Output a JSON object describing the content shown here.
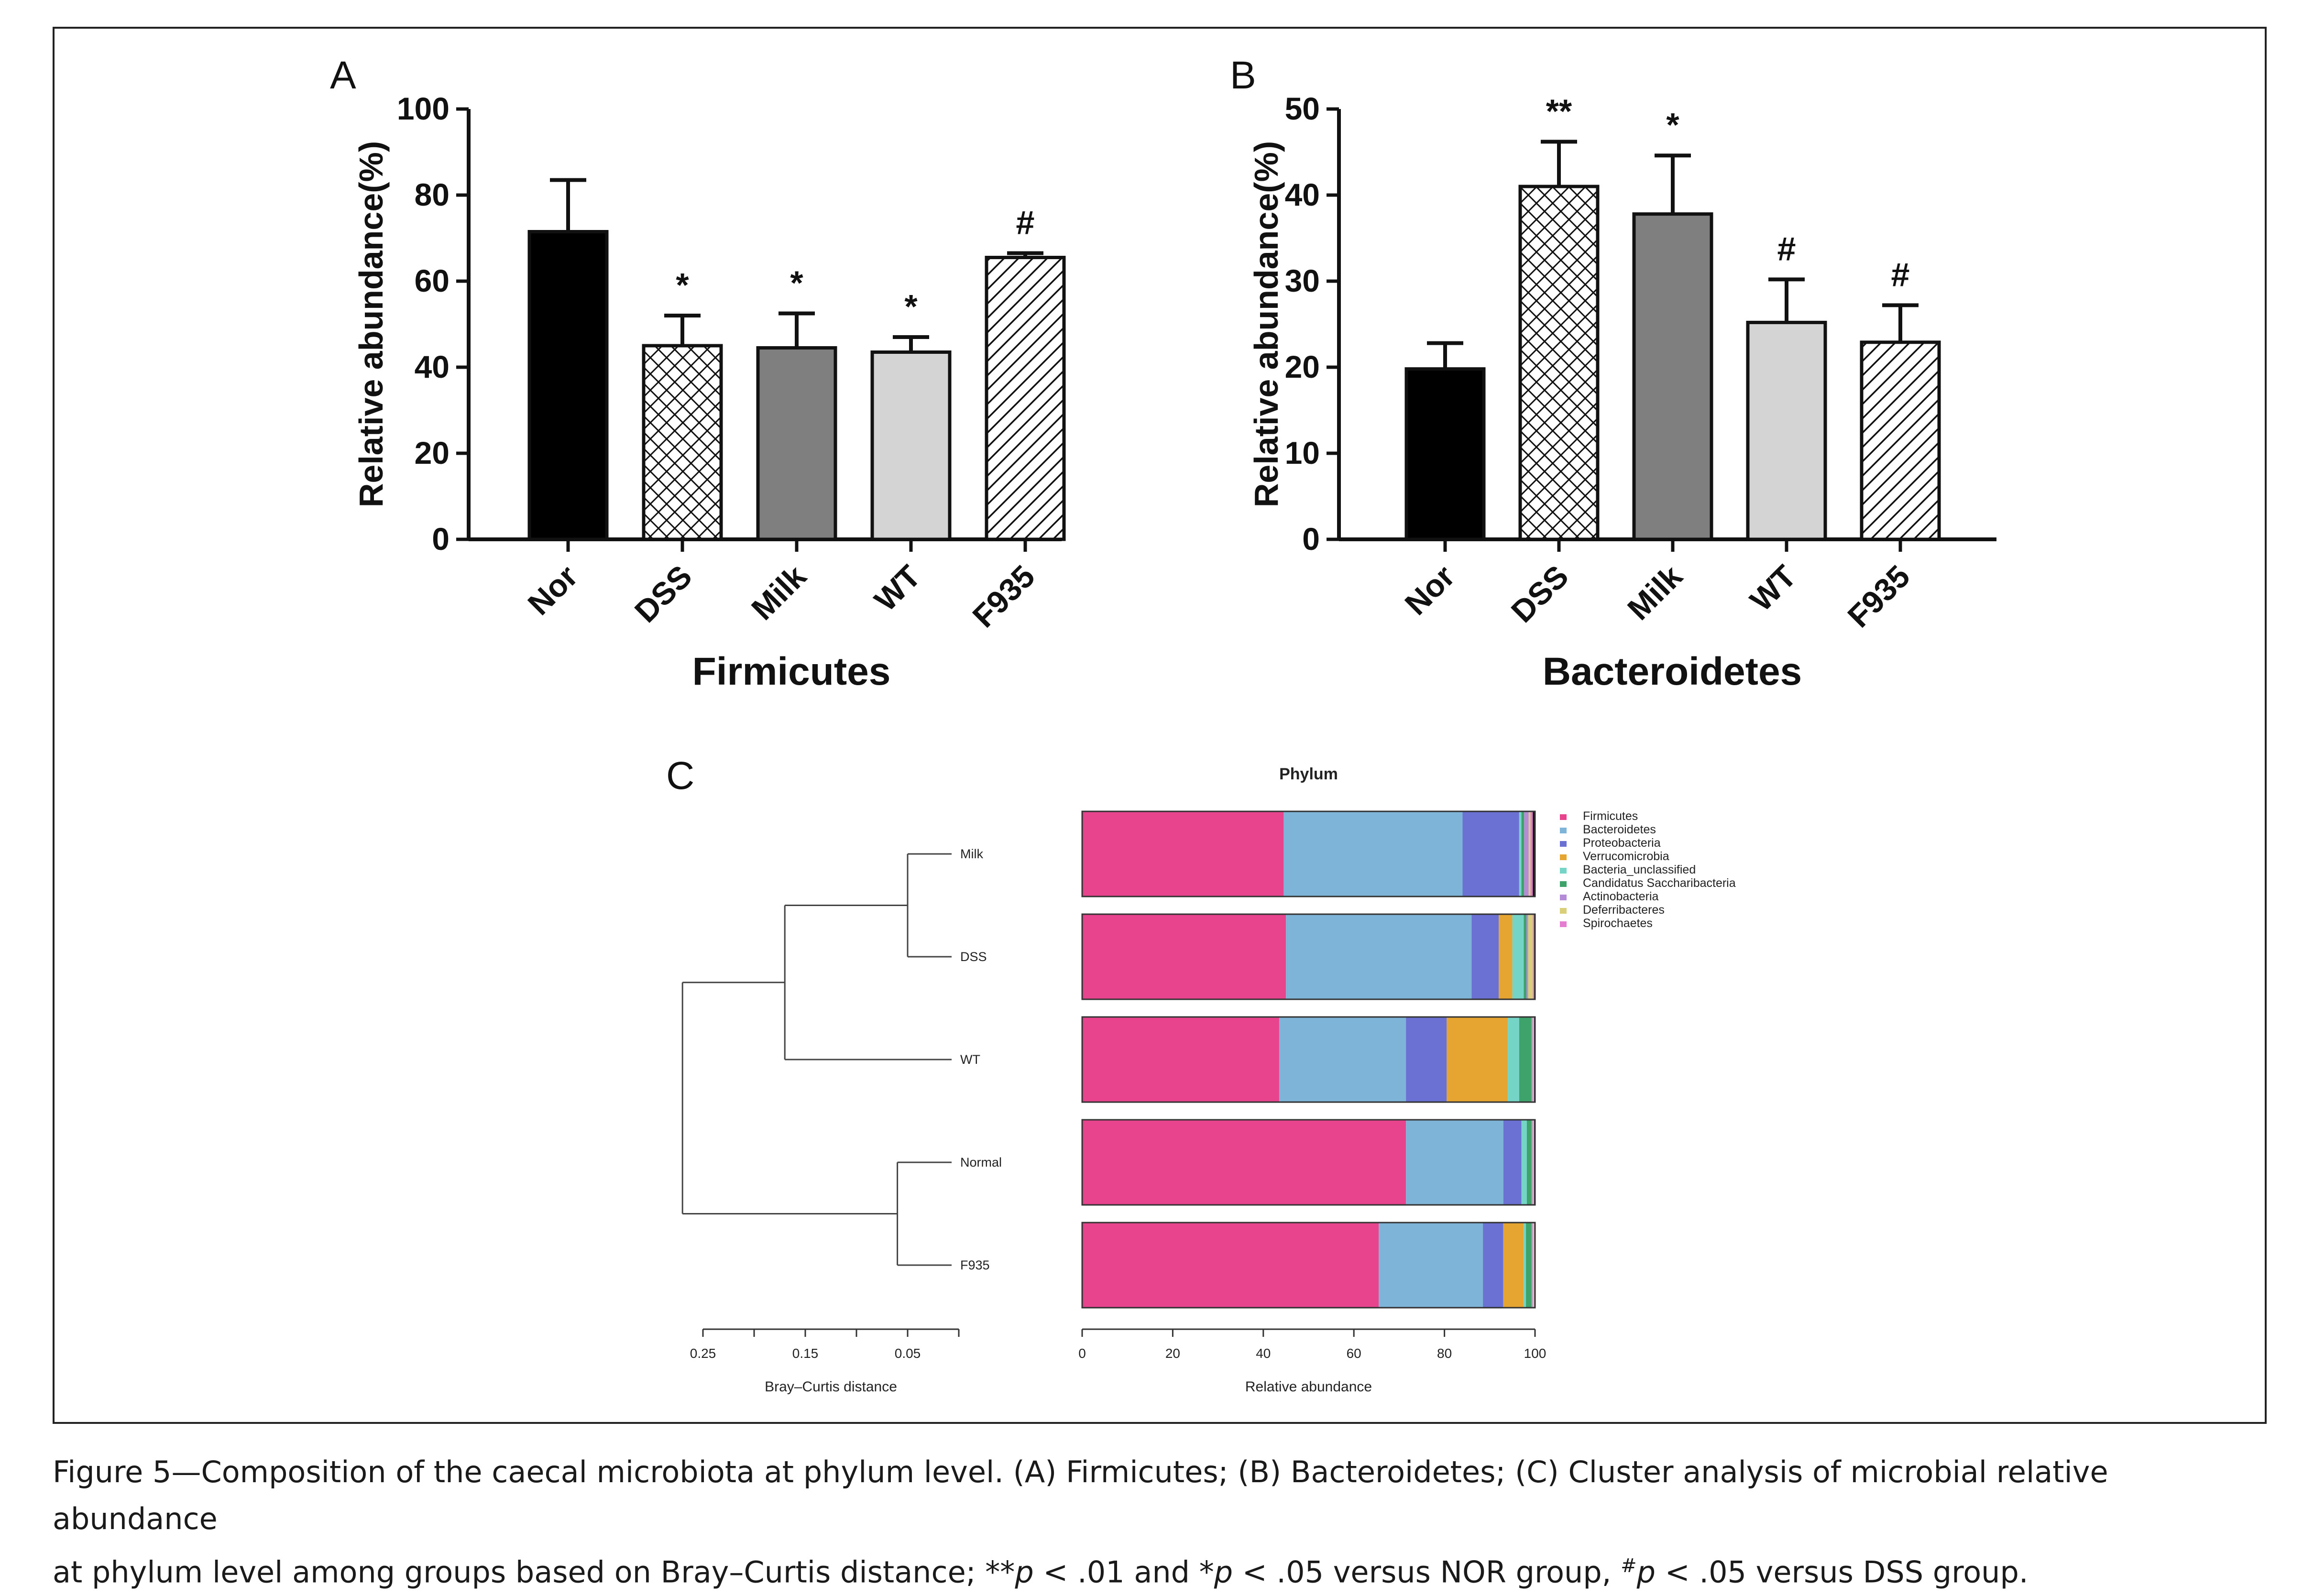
{
  "caption": {
    "t1": "Figure 5—Composition of the caecal microbiota at phylum level. (A) Firmicutes; (B) Bacteroidetes; (C) Cluster analysis of microbial relative abundance",
    "t2": "at phylum level among groups based on Bray–Curtis distance; **",
    "p1": "p",
    "t3": " < .01 and *",
    "p2": "p",
    "t4": " < .05 versus NOR group, ",
    "hash": "#",
    "p3": "p",
    "t5": " < .05 versus DSS group."
  },
  "chart_data": [
    {
      "panel": "A",
      "type": "bar",
      "xlabel": "Firmicutes",
      "ylabel": "Relative abundance(%)",
      "ylim": [
        0,
        100
      ],
      "yticks": [
        0,
        20,
        40,
        60,
        80,
        100
      ],
      "categories": [
        "Nor",
        "DSS",
        "Milk",
        "WT",
        "F935"
      ],
      "values": [
        71.5,
        45,
        44.5,
        43.5,
        65.5
      ],
      "errors": [
        12,
        7,
        8,
        3.5,
        1
      ],
      "significance": [
        "",
        "*",
        "*",
        "*",
        "#"
      ],
      "fills": [
        "black",
        "crosshatch",
        "dark-gray",
        "light-gray",
        "diagonal"
      ]
    },
    {
      "panel": "B",
      "type": "bar",
      "xlabel": "Bacteroidetes",
      "ylabel": "Relative abundance(%)",
      "ylim": [
        0,
        50
      ],
      "yticks": [
        0,
        10,
        20,
        30,
        40,
        50
      ],
      "categories": [
        "Nor",
        "DSS",
        "Milk",
        "WT",
        "F935"
      ],
      "values": [
        19.8,
        41,
        37.8,
        25.2,
        22.9
      ],
      "errors": [
        3,
        5.2,
        6.8,
        5,
        4.3
      ],
      "significance": [
        "",
        "**",
        "*",
        "#",
        "#"
      ],
      "fills": [
        "black",
        "crosshatch",
        "dark-gray",
        "light-gray",
        "diagonal"
      ]
    },
    {
      "panel": "C",
      "type": "stacked-bar-with-dendrogram",
      "title": "Phylum",
      "xlabel": "Relative abundance",
      "xlim": [
        0,
        100
      ],
      "xticks": [
        "0",
        "20",
        "40",
        "60",
        "80",
        "100"
      ],
      "dendrogram_xlabel": "Bray–Curtis distance",
      "dendrogram_ticks": [
        "0.25",
        "0.15",
        "0.05"
      ],
      "dendrogram_tick_values": [
        0.25,
        0.2,
        0.15,
        0.1,
        0.05,
        0.0
      ],
      "samples": [
        "Milk",
        "DSS",
        "WT",
        "Normal",
        "F935"
      ],
      "dendrogram": {
        "merge_milk_dss": 0.05,
        "merge_milkdss_wt": 0.17,
        "merge_normal_f935": 0.06,
        "root": 0.27
      },
      "legend": [
        "Firmicutes",
        "Bacteroidetes",
        "Proteobacteria",
        "Verrucomicrobia",
        "Bacteria_unclassified",
        "Candidatus Saccharibacteria",
        "Actinobacteria",
        "Deferribacteres",
        "Spirochaetes"
      ],
      "colors": [
        "#e8448e",
        "#7fb4d9",
        "#6a71d3",
        "#e6a531",
        "#74d4c6",
        "#3ea26b",
        "#b38bd6",
        "#d9cf78",
        "#e47cd0"
      ],
      "series": [
        {
          "name": "Firmicutes",
          "values": [
            44.5,
            45,
            43.5,
            71.5,
            65.5
          ]
        },
        {
          "name": "Bacteroidetes",
          "values": [
            39.5,
            41,
            28,
            21.5,
            23
          ]
        },
        {
          "name": "Proteobacteria",
          "values": [
            12.5,
            6,
            9,
            4,
            4.5
          ]
        },
        {
          "name": "Verrucomicrobia",
          "values": [
            0,
            3,
            13.5,
            0,
            4.5
          ]
        },
        {
          "name": "Bacteria_unclassified",
          "values": [
            0.5,
            2.5,
            2.5,
            1.2,
            0.5
          ]
        },
        {
          "name": "Candidatus Saccharibacteria",
          "values": [
            0.6,
            0.6,
            2.7,
            1,
            1.2
          ]
        },
        {
          "name": "Actinobacteria",
          "values": [
            1,
            0.4,
            0.3,
            0.3,
            0.3
          ]
        },
        {
          "name": "Deferribacteres",
          "values": [
            0.4,
            1,
            0.2,
            0.2,
            0.3
          ]
        },
        {
          "name": "Spirochaetes",
          "values": [
            0.5,
            0.3,
            0.1,
            0.1,
            0.1
          ]
        }
      ],
      "remainder_color": "#111111"
    }
  ]
}
